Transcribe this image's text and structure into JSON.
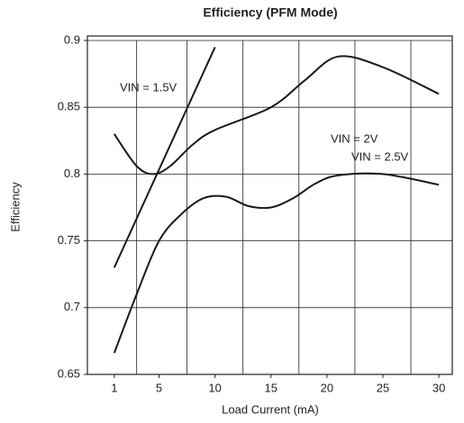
{
  "chart_data": {
    "type": "line",
    "title": "Efficiency (PFM Mode)",
    "xlabel": "Load Current (mA)",
    "ylabel": "Efficiency",
    "xlim": [
      -1.4,
      31.2
    ],
    "ylim": [
      0.65,
      0.9
    ],
    "xticks": [
      1,
      5,
      10,
      15,
      20,
      25,
      30
    ],
    "yticks": [
      0.65,
      0.7,
      0.75,
      0.8,
      0.85,
      0.9
    ],
    "grid": true,
    "color": "#1a1a1a",
    "series": [
      {
        "name": "VIN = 1.5V",
        "x": [
          1,
          10
        ],
        "values": [
          0.73,
          0.895
        ]
      },
      {
        "name": "VIN = 2V",
        "x": [
          1,
          3,
          4.5,
          6,
          8,
          10,
          15,
          18,
          21,
          25,
          30
        ],
        "values": [
          0.83,
          0.806,
          0.8,
          0.806,
          0.822,
          0.833,
          0.85,
          0.87,
          0.888,
          0.88,
          0.86
        ]
      },
      {
        "name": "VIN = 2.5V",
        "x": [
          1,
          3,
          5,
          7,
          9,
          11,
          13,
          15,
          17,
          19,
          21,
          25,
          30
        ],
        "values": [
          0.666,
          0.71,
          0.75,
          0.77,
          0.782,
          0.783,
          0.776,
          0.775,
          0.782,
          0.793,
          0.799,
          0.8,
          0.792
        ]
      }
    ]
  }
}
